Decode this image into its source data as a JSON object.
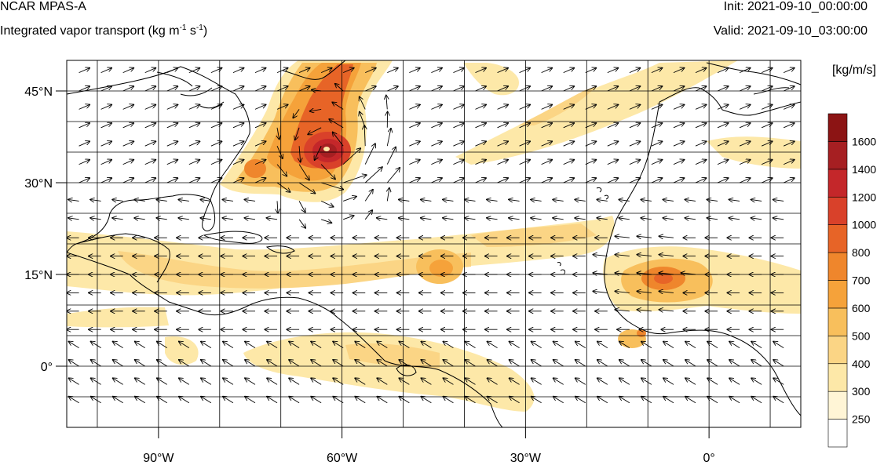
{
  "header": {
    "model": "NCAR MPAS-A",
    "field_text": "Integrated vapor transport (kg m",
    "sup1": "-1",
    "field_mid": " s",
    "sup2": "-1",
    "field_close": ")",
    "init": "Init: 2021-09-10_00:00:00",
    "valid": "Valid: 2021-09-10_03:00:00"
  },
  "map": {
    "lon_range": [
      -105,
      15
    ],
    "lat_range": [
      -10,
      50
    ],
    "lat_ticks": [
      {
        "label": "45°N",
        "lat": 45
      },
      {
        "label": "30°N",
        "lat": 30
      },
      {
        "label": "15°N",
        "lat": 15
      },
      {
        "label": "0°",
        "lat": 0
      }
    ],
    "lon_ticks": [
      {
        "label": "90°W",
        "lon": -90
      },
      {
        "label": "60°W",
        "lon": -60
      },
      {
        "label": "30°W",
        "lon": -30
      },
      {
        "label": "0°",
        "lon": 0
      }
    ],
    "gridlines": true,
    "feature": "Hurricane core near 34°N 61°W"
  },
  "colorbar": {
    "units": "[kg/m/s]",
    "levels": [
      "250",
      "300",
      "400",
      "500",
      "600",
      "700",
      "800",
      "1000",
      "1200",
      "1400",
      "1600"
    ],
    "colors": [
      "#ffffff",
      "#fff5d6",
      "#fde8a8",
      "#fbd585",
      "#f8bf5c",
      "#f5a23a",
      "#ef862c",
      "#e76427",
      "#d9412a",
      "#c4272a",
      "#a61f22",
      "#8c1414"
    ]
  }
}
